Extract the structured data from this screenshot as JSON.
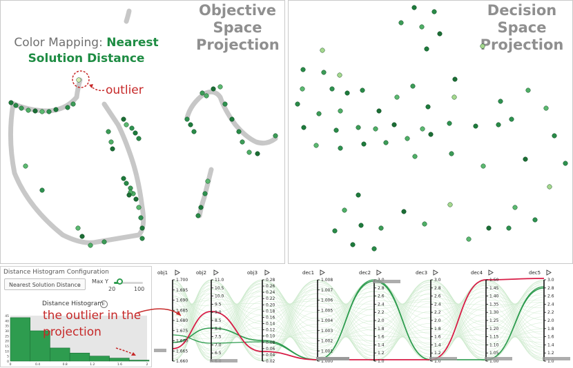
{
  "objective_panel": {
    "title_lines": [
      "Objective",
      "Space",
      "Projection"
    ],
    "color_mapping_prefix": "Color Mapping: ",
    "color_mapping_value_1": "Nearest",
    "color_mapping_value_2": "Solution Distance",
    "outlier_label": "outlier"
  },
  "decision_panel": {
    "title_lines": [
      "Decision",
      "Space",
      "Projection"
    ]
  },
  "config_panel": {
    "title": "Distance Histogram Configuration",
    "selected_metric": "Nearest Solution Distance",
    "max_y_label": "Max Y",
    "slider_min": "20",
    "slider_max": "100",
    "slider_value": 20,
    "histogram_title": "Distance Histogram",
    "y_ticks": [
      "45",
      "40",
      "35",
      "30",
      "25",
      "20",
      "15",
      "10",
      "5",
      "0"
    ],
    "x_ticks": [
      "0",
      "0.4",
      "0.8",
      "1.2",
      "1.6",
      "2"
    ],
    "bar_values": [
      43,
      30,
      13,
      8,
      5,
      3,
      1
    ],
    "bar_color": "#2e9c4f"
  },
  "outlier_projection_label": "the outlier in the projection",
  "parallel_coordinates": {
    "axes": [
      {
        "name": "obj1",
        "ticks": [
          "1.700",
          "1.695",
          "1.690",
          "1.685",
          "1.680",
          "1.675",
          "1.670",
          "1.665",
          "1.660"
        ]
      },
      {
        "name": "obj2",
        "ticks": [
          "11.0",
          "10.5",
          "10.0",
          "9.5",
          "9.0",
          "8.5",
          "8.0",
          "7.5",
          "7.0",
          "6.5",
          "6.0"
        ]
      },
      {
        "name": "obj3",
        "ticks": [
          "0.28",
          "0.26",
          "0.24",
          "0.22",
          "0.20",
          "0.18",
          "0.16",
          "0.14",
          "0.12",
          "0.10",
          "0.08",
          "0.06",
          "0.04",
          "0.02"
        ]
      },
      {
        "name": "dec1",
        "ticks": [
          "1.008",
          "1.007",
          "1.006",
          "1.005",
          "1.004",
          "1.003",
          "1.002",
          "1.001",
          "1.000"
        ]
      },
      {
        "name": "dec2",
        "ticks": [
          "3.0",
          "2.8",
          "2.6",
          "2.4",
          "2.2",
          "2.0",
          "1.8",
          "1.6",
          "1.4",
          "1.2",
          "1.0"
        ]
      },
      {
        "name": "dec3",
        "ticks": [
          "3.0",
          "2.8",
          "2.6",
          "2.4",
          "2.2",
          "2.0",
          "1.8",
          "1.6",
          "1.4",
          "1.2",
          "1.0"
        ]
      },
      {
        "name": "dec4",
        "ticks": [
          "1.50",
          "1.45",
          "1.40",
          "1.35",
          "1.30",
          "1.25",
          "1.20",
          "1.15",
          "1.10",
          "1.05",
          "1.00"
        ]
      },
      {
        "name": "dec5",
        "ticks": [
          "3.0",
          "2.8",
          "2.6",
          "2.4",
          "2.2",
          "2.0",
          "1.8",
          "1.6",
          "1.4",
          "1.2",
          "1.0"
        ]
      }
    ],
    "highlight_color": "#d81b45",
    "line_color": "#2e9c4f"
  }
}
